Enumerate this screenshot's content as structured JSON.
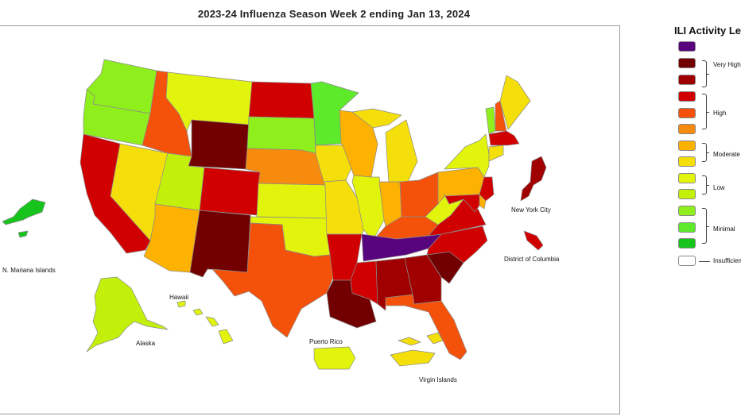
{
  "title": "2023-24 Influenza Season Week 2 ending Jan 13, 2024",
  "legend": {
    "title": "ILI Activity Le",
    "groups": {
      "very_high": "Very High",
      "high": "High",
      "moderate": "Moderate",
      "low": "Low",
      "minimal": "Minimal",
      "insufficient": "Insufficien"
    }
  },
  "levels": {
    "l13": "#58047f",
    "l12": "#720000",
    "l11": "#a00000",
    "l10": "#d10000",
    "l9": "#f4520b",
    "l8": "#f78b0e",
    "l7": "#fdb100",
    "l6": "#f5df0a",
    "l5": "#e2f40b",
    "l4": "#c3f00a",
    "l3": "#8fef1c",
    "l2": "#5dea2b",
    "l1": "#17c41c",
    "insufficient": "#ffffff"
  },
  "labels": {
    "nyc": "New York City",
    "dc": "District of Columbia",
    "nmi": "N. Mariana Islands",
    "hawaii": "Hawaii",
    "alaska": "Alaska",
    "puerto_rico": "Puerto Rico",
    "virgin_islands": "Virgin Islands"
  },
  "states": [
    {
      "id": "WA",
      "level": "l3"
    },
    {
      "id": "OR",
      "level": "l3"
    },
    {
      "id": "CA",
      "level": "l10"
    },
    {
      "id": "NV",
      "level": "l6"
    },
    {
      "id": "ID",
      "level": "l9"
    },
    {
      "id": "MT",
      "level": "l5"
    },
    {
      "id": "WY",
      "level": "l12"
    },
    {
      "id": "UT",
      "level": "l4"
    },
    {
      "id": "AZ",
      "level": "l7"
    },
    {
      "id": "CO",
      "level": "l10"
    },
    {
      "id": "NM",
      "level": "l12"
    },
    {
      "id": "ND",
      "level": "l10"
    },
    {
      "id": "SD",
      "level": "l3"
    },
    {
      "id": "NE",
      "level": "l8"
    },
    {
      "id": "KS",
      "level": "l5"
    },
    {
      "id": "OK",
      "level": "l5"
    },
    {
      "id": "TX",
      "level": "l9"
    },
    {
      "id": "MN",
      "level": "l2"
    },
    {
      "id": "IA",
      "level": "l6"
    },
    {
      "id": "MO",
      "level": "l6"
    },
    {
      "id": "AR",
      "level": "l10"
    },
    {
      "id": "LA",
      "level": "l12"
    },
    {
      "id": "WI",
      "level": "l7"
    },
    {
      "id": "IL",
      "level": "l5"
    },
    {
      "id": "MI",
      "level": "l6"
    },
    {
      "id": "IN",
      "level": "l7"
    },
    {
      "id": "OH",
      "level": "l9"
    },
    {
      "id": "KY",
      "level": "l9"
    },
    {
      "id": "TN",
      "level": "l13"
    },
    {
      "id": "MS",
      "level": "l10"
    },
    {
      "id": "AL",
      "level": "l11"
    },
    {
      "id": "GA",
      "level": "l11"
    },
    {
      "id": "FL",
      "level": "l9"
    },
    {
      "id": "SC",
      "level": "l12"
    },
    {
      "id": "NC",
      "level": "l10"
    },
    {
      "id": "VA",
      "level": "l10"
    },
    {
      "id": "WV",
      "level": "l5"
    },
    {
      "id": "PA",
      "level": "l7"
    },
    {
      "id": "NY",
      "level": "l5"
    },
    {
      "id": "VT",
      "level": "l3"
    },
    {
      "id": "NH",
      "level": "l9"
    },
    {
      "id": "ME",
      "level": "l6"
    },
    {
      "id": "MA",
      "level": "l10"
    },
    {
      "id": "CT",
      "level": "l6"
    },
    {
      "id": "NJ",
      "level": "l10"
    },
    {
      "id": "DE",
      "level": "l7"
    },
    {
      "id": "MD",
      "level": "l10"
    },
    {
      "id": "NYC",
      "level": "l11"
    },
    {
      "id": "DC",
      "level": "l10"
    },
    {
      "id": "AK",
      "level": "l4"
    },
    {
      "id": "HI",
      "level": "l5"
    },
    {
      "id": "PR",
      "level": "l5"
    },
    {
      "id": "VI",
      "level": "l6"
    },
    {
      "id": "NMI",
      "level": "l1"
    }
  ]
}
